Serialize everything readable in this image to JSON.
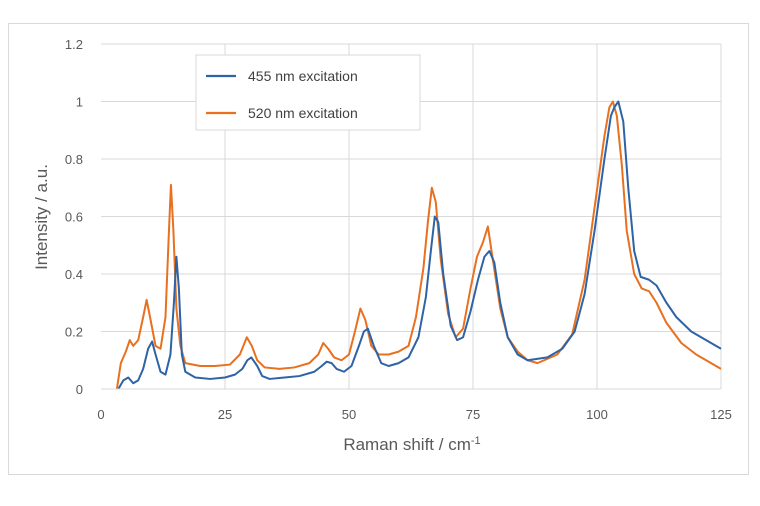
{
  "chart_data": {
    "type": "line",
    "title": "",
    "xlabel": "Raman shift / cm",
    "xlabel_sup": "-1",
    "ylabel": "Intensity / a.u.",
    "xlim": [
      0,
      125
    ],
    "ylim": [
      0,
      1.2
    ],
    "x_ticks": [
      0,
      25,
      50,
      75,
      100,
      125
    ],
    "y_ticks": [
      0,
      0.2,
      0.4,
      0.6,
      0.8,
      1,
      1.2
    ],
    "y_tick_labels": [
      "0",
      "0.2",
      "0.4",
      "0.6",
      "0.8",
      "1",
      "1.2"
    ],
    "grid": "major both axes",
    "legend_position": "top-left",
    "series": [
      {
        "name": "455 nm excitation",
        "color": "#2e63a6",
        "points": [
          [
            3.5,
            0.0
          ],
          [
            4.5,
            0.03
          ],
          [
            5.5,
            0.04
          ],
          [
            6.5,
            0.02
          ],
          [
            7.5,
            0.03
          ],
          [
            8.5,
            0.07
          ],
          [
            9.5,
            0.14
          ],
          [
            10.3,
            0.165
          ],
          [
            11,
            0.12
          ],
          [
            12,
            0.06
          ],
          [
            13,
            0.05
          ],
          [
            14,
            0.12
          ],
          [
            14.7,
            0.3
          ],
          [
            15.2,
            0.46
          ],
          [
            15.7,
            0.35
          ],
          [
            16.3,
            0.12
          ],
          [
            17,
            0.06
          ],
          [
            19,
            0.04
          ],
          [
            22,
            0.035
          ],
          [
            25,
            0.04
          ],
          [
            27,
            0.05
          ],
          [
            28.5,
            0.07
          ],
          [
            29.5,
            0.1
          ],
          [
            30.3,
            0.11
          ],
          [
            31.5,
            0.08
          ],
          [
            32.5,
            0.045
          ],
          [
            34,
            0.035
          ],
          [
            37,
            0.04
          ],
          [
            40,
            0.045
          ],
          [
            43,
            0.06
          ],
          [
            44.5,
            0.08
          ],
          [
            45.5,
            0.095
          ],
          [
            46.5,
            0.09
          ],
          [
            47.5,
            0.07
          ],
          [
            49,
            0.06
          ],
          [
            50.5,
            0.08
          ],
          [
            52,
            0.15
          ],
          [
            53,
            0.2
          ],
          [
            53.8,
            0.21
          ],
          [
            55,
            0.15
          ],
          [
            56.5,
            0.09
          ],
          [
            58,
            0.08
          ],
          [
            60,
            0.09
          ],
          [
            62,
            0.11
          ],
          [
            64,
            0.18
          ],
          [
            65.5,
            0.32
          ],
          [
            66.5,
            0.48
          ],
          [
            67.3,
            0.6
          ],
          [
            68,
            0.58
          ],
          [
            69,
            0.4
          ],
          [
            70.5,
            0.22
          ],
          [
            71.8,
            0.17
          ],
          [
            73,
            0.18
          ],
          [
            74.5,
            0.27
          ],
          [
            76,
            0.38
          ],
          [
            77.3,
            0.46
          ],
          [
            78.3,
            0.48
          ],
          [
            79.3,
            0.44
          ],
          [
            80.5,
            0.3
          ],
          [
            82,
            0.18
          ],
          [
            84,
            0.12
          ],
          [
            86,
            0.1
          ],
          [
            90,
            0.11
          ],
          [
            93,
            0.14
          ],
          [
            95.5,
            0.2
          ],
          [
            97.5,
            0.33
          ],
          [
            99.5,
            0.55
          ],
          [
            101.5,
            0.8
          ],
          [
            102.8,
            0.95
          ],
          [
            103.5,
            0.98
          ],
          [
            104.3,
            1.0
          ],
          [
            105.3,
            0.93
          ],
          [
            106.3,
            0.7
          ],
          [
            107.5,
            0.48
          ],
          [
            108.8,
            0.39
          ],
          [
            110.5,
            0.38
          ],
          [
            112,
            0.36
          ],
          [
            114,
            0.3
          ],
          [
            116,
            0.25
          ],
          [
            119,
            0.2
          ],
          [
            122,
            0.17
          ],
          [
            125,
            0.14
          ]
        ]
      },
      {
        "name": "520 nm excitation",
        "color": "#e8701f",
        "points": [
          [
            3.2,
            0.0
          ],
          [
            4,
            0.09
          ],
          [
            5,
            0.13
          ],
          [
            5.8,
            0.17
          ],
          [
            6.5,
            0.15
          ],
          [
            7.5,
            0.17
          ],
          [
            8.5,
            0.25
          ],
          [
            9.2,
            0.31
          ],
          [
            10,
            0.24
          ],
          [
            11,
            0.15
          ],
          [
            12,
            0.14
          ],
          [
            13,
            0.25
          ],
          [
            13.7,
            0.55
          ],
          [
            14.1,
            0.71
          ],
          [
            14.6,
            0.55
          ],
          [
            15.2,
            0.28
          ],
          [
            16,
            0.15
          ],
          [
            17,
            0.09
          ],
          [
            20,
            0.08
          ],
          [
            23,
            0.08
          ],
          [
            26,
            0.085
          ],
          [
            28,
            0.12
          ],
          [
            29.4,
            0.18
          ],
          [
            30.4,
            0.15
          ],
          [
            31.5,
            0.1
          ],
          [
            33,
            0.075
          ],
          [
            36,
            0.07
          ],
          [
            39,
            0.075
          ],
          [
            42,
            0.09
          ],
          [
            43.8,
            0.12
          ],
          [
            44.8,
            0.16
          ],
          [
            45.8,
            0.14
          ],
          [
            47,
            0.11
          ],
          [
            48.5,
            0.1
          ],
          [
            50,
            0.12
          ],
          [
            51.2,
            0.2
          ],
          [
            52.3,
            0.28
          ],
          [
            53.3,
            0.24
          ],
          [
            54.5,
            0.15
          ],
          [
            56,
            0.12
          ],
          [
            58,
            0.12
          ],
          [
            60,
            0.13
          ],
          [
            62,
            0.15
          ],
          [
            63.5,
            0.25
          ],
          [
            65,
            0.42
          ],
          [
            65.9,
            0.58
          ],
          [
            66.7,
            0.7
          ],
          [
            67.5,
            0.65
          ],
          [
            68.5,
            0.45
          ],
          [
            70,
            0.26
          ],
          [
            71.5,
            0.18
          ],
          [
            73,
            0.21
          ],
          [
            74.5,
            0.35
          ],
          [
            75.8,
            0.46
          ],
          [
            77,
            0.51
          ],
          [
            78,
            0.565
          ],
          [
            79,
            0.45
          ],
          [
            80.5,
            0.28
          ],
          [
            82,
            0.18
          ],
          [
            84,
            0.13
          ],
          [
            86,
            0.1
          ],
          [
            88,
            0.09
          ],
          [
            92,
            0.12
          ],
          [
            95,
            0.19
          ],
          [
            97.5,
            0.38
          ],
          [
            99.5,
            0.63
          ],
          [
            101.5,
            0.88
          ],
          [
            102.5,
            0.98
          ],
          [
            103.2,
            1.0
          ],
          [
            104,
            0.95
          ],
          [
            105,
            0.78
          ],
          [
            106,
            0.55
          ],
          [
            107.5,
            0.4
          ],
          [
            109,
            0.35
          ],
          [
            110.5,
            0.34
          ],
          [
            112,
            0.3
          ],
          [
            114,
            0.23
          ],
          [
            117,
            0.16
          ],
          [
            120,
            0.12
          ],
          [
            123,
            0.09
          ],
          [
            125,
            0.07
          ]
        ]
      }
    ]
  }
}
